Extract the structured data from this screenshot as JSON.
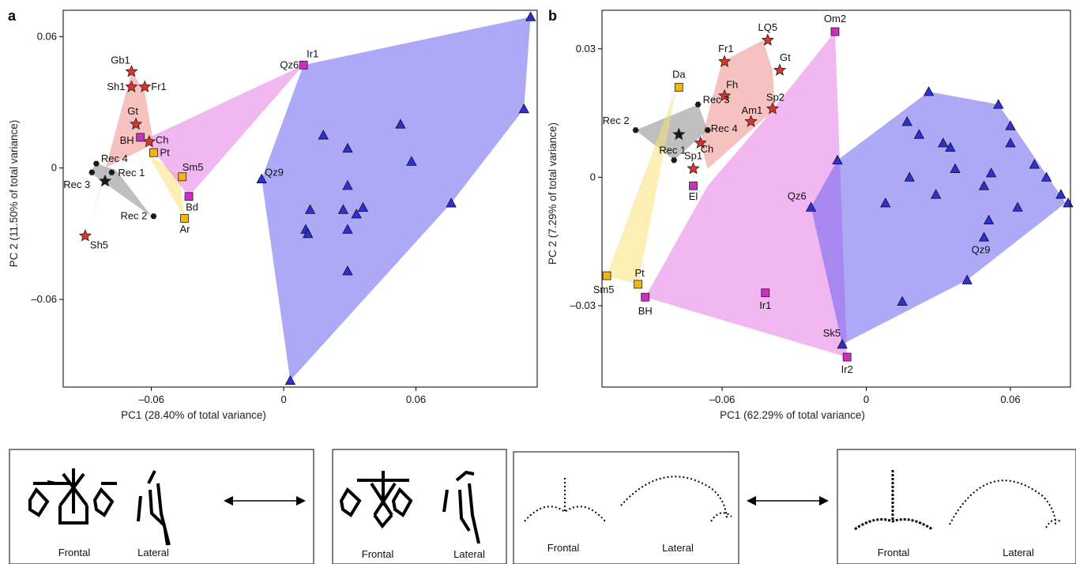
{
  "colors": {
    "paleo_fill": "#ec8f8a",
    "paleo_marker": "#e0322b",
    "recent_fill": "#8a8a8a",
    "recent_marker": "#1a1a1a",
    "yellow_fill": "#f7e27a",
    "yellow_marker": "#f2b60c",
    "magenta_fill": "#e57be6",
    "magenta_marker": "#cc2fbf",
    "blue_fill": "#6a62f0",
    "blue_marker": "#2f2fd8"
  },
  "chart_data": [
    {
      "panel": "a",
      "type": "scatter",
      "xlabel": "PC1 (28.40% of total variance)",
      "ylabel": "PC 2 (11.50% of total variance)",
      "xlim": [
        -0.1,
        0.115
      ],
      "ylim": [
        -0.1,
        0.072
      ],
      "xticks": [
        -0.06,
        0,
        0.06
      ],
      "xtick_labels": [
        "–0.06",
        "0",
        "0.06"
      ],
      "yticks": [
        -0.06,
        0,
        0.06
      ],
      "ytick_labels": [
        "–0.06",
        "0",
        "0.06"
      ],
      "hulls": [
        {
          "group": "red",
          "color": "#ec8f8a",
          "points": [
            [
              -0.069,
              0.044
            ],
            [
              -0.063,
              0.035
            ],
            [
              -0.059,
              0.011
            ],
            [
              -0.081,
              0.0
            ],
            [
              -0.089,
              -0.031
            ]
          ]
        },
        {
          "group": "grey",
          "color": "#8a8a8a",
          "points": [
            [
              -0.085,
              0.002
            ],
            [
              -0.076,
              -0.001
            ],
            [
              -0.06,
              -0.022
            ],
            [
              -0.088,
              -0.002
            ]
          ]
        },
        {
          "group": "yellow",
          "color": "#f7e27a",
          "points": [
            [
              -0.062,
              0.007
            ],
            [
              -0.047,
              -0.004
            ],
            [
              -0.045,
              -0.023
            ]
          ]
        },
        {
          "group": "magenta",
          "color": "#e57be6",
          "points": [
            [
              0.009,
              0.047
            ],
            [
              -0.063,
              0.013
            ],
            [
              -0.043,
              -0.013
            ]
          ]
        },
        {
          "group": "blue",
          "color": "#6a62f0",
          "points": [
            [
              0.112,
              0.069
            ],
            [
              0.109,
              0.027
            ],
            [
              0.076,
              -0.016
            ],
            [
              0.003,
              -0.097
            ],
            [
              -0.01,
              -0.005
            ],
            [
              0.009,
              0.047
            ]
          ]
        }
      ],
      "points": [
        {
          "label": "Gb1",
          "x": -0.069,
          "y": 0.044,
          "marker": "star",
          "color": "#e0322b"
        },
        {
          "label": "Sh1",
          "x": -0.069,
          "y": 0.037,
          "marker": "star",
          "color": "#e0322b"
        },
        {
          "label": "Fr1",
          "x": -0.063,
          "y": 0.037,
          "marker": "star",
          "color": "#e0322b"
        },
        {
          "label": "Gt",
          "x": -0.067,
          "y": 0.02,
          "marker": "star",
          "color": "#e0322b"
        },
        {
          "label": "Ch",
          "x": -0.061,
          "y": 0.012,
          "marker": "star",
          "color": "#e0322b"
        },
        {
          "label": "Sh5",
          "x": -0.09,
          "y": -0.031,
          "marker": "star",
          "color": "#e0322b"
        },
        {
          "label": "BH",
          "x": -0.065,
          "y": 0.014,
          "marker": "square",
          "color": "#cc2fbf"
        },
        {
          "label": "Pt",
          "x": -0.059,
          "y": 0.007,
          "marker": "square",
          "color": "#f2b60c"
        },
        {
          "label": "Sm5",
          "x": -0.046,
          "y": -0.004,
          "marker": "square",
          "color": "#f2b60c"
        },
        {
          "label": "Bd",
          "x": -0.043,
          "y": -0.013,
          "marker": "square",
          "color": "#cc2fbf"
        },
        {
          "label": "Ar",
          "x": -0.045,
          "y": -0.023,
          "marker": "square",
          "color": "#f2b60c"
        },
        {
          "label": "Ir1",
          "x": 0.009,
          "y": 0.047,
          "marker": "square",
          "color": "#cc2fbf"
        },
        {
          "label": "Rec 4",
          "x": -0.085,
          "y": 0.002,
          "marker": "hex",
          "color": "#1a1a1a"
        },
        {
          "label": "Rec 1",
          "x": -0.078,
          "y": -0.002,
          "marker": "hex",
          "color": "#1a1a1a"
        },
        {
          "label": "Rec 3",
          "x": -0.087,
          "y": -0.002,
          "marker": "hex",
          "color": "#1a1a1a"
        },
        {
          "label": "Rec 2",
          "x": -0.059,
          "y": -0.022,
          "marker": "hex",
          "color": "#1a1a1a"
        },
        {
          "label": "",
          "x": -0.081,
          "y": -0.006,
          "marker": "star",
          "color": "#1a1a1a"
        },
        {
          "label": "Qz6",
          "x": 0.009,
          "y": 0.047,
          "marker": "none",
          "color": "#2f2fd8"
        },
        {
          "label": "Qz9",
          "x": -0.01,
          "y": -0.005,
          "marker": "triangle",
          "color": "#2f2fd8"
        },
        {
          "label": "",
          "x": 0.112,
          "y": 0.069,
          "marker": "triangle",
          "color": "#2f2fd8"
        },
        {
          "label": "",
          "x": 0.109,
          "y": 0.027,
          "marker": "triangle",
          "color": "#2f2fd8"
        },
        {
          "label": "",
          "x": 0.053,
          "y": 0.02,
          "marker": "triangle",
          "color": "#2f2fd8"
        },
        {
          "label": "",
          "x": 0.018,
          "y": 0.015,
          "marker": "triangle",
          "color": "#2f2fd8"
        },
        {
          "label": "",
          "x": 0.029,
          "y": 0.009,
          "marker": "triangle",
          "color": "#2f2fd8"
        },
        {
          "label": "",
          "x": 0.058,
          "y": 0.003,
          "marker": "triangle",
          "color": "#2f2fd8"
        },
        {
          "label": "",
          "x": 0.029,
          "y": -0.008,
          "marker": "triangle",
          "color": "#2f2fd8"
        },
        {
          "label": "",
          "x": 0.012,
          "y": -0.019,
          "marker": "triangle",
          "color": "#2f2fd8"
        },
        {
          "label": "",
          "x": 0.027,
          "y": -0.019,
          "marker": "triangle",
          "color": "#2f2fd8"
        },
        {
          "label": "",
          "x": 0.033,
          "y": -0.021,
          "marker": "triangle",
          "color": "#2f2fd8"
        },
        {
          "label": "",
          "x": 0.036,
          "y": -0.018,
          "marker": "triangle",
          "color": "#2f2fd8"
        },
        {
          "label": "",
          "x": 0.01,
          "y": -0.028,
          "marker": "triangle",
          "color": "#2f2fd8"
        },
        {
          "label": "",
          "x": 0.011,
          "y": -0.03,
          "marker": "triangle",
          "color": "#2f2fd8"
        },
        {
          "label": "",
          "x": 0.029,
          "y": -0.028,
          "marker": "triangle",
          "color": "#2f2fd8"
        },
        {
          "label": "",
          "x": 0.029,
          "y": -0.047,
          "marker": "triangle",
          "color": "#2f2fd8"
        },
        {
          "label": "",
          "x": 0.076,
          "y": -0.016,
          "marker": "triangle",
          "color": "#2f2fd8"
        },
        {
          "label": "",
          "x": 0.003,
          "y": -0.097,
          "marker": "triangle",
          "color": "#2f2fd8"
        }
      ]
    },
    {
      "panel": "b",
      "type": "scatter",
      "xlabel": "PC1 (62.29% of total variance)",
      "ylabel": "PC 2 (7.29% of total variance)",
      "xlim": [
        -0.11,
        0.085
      ],
      "ylim": [
        -0.049,
        0.039
      ],
      "xticks": [
        -0.06,
        0,
        0.06
      ],
      "xtick_labels": [
        "–0.06",
        "0",
        "0.06"
      ],
      "yticks": [
        -0.03,
        0,
        0.03
      ],
      "ytick_labels": [
        "–0.03",
        "0",
        "0.03"
      ],
      "hulls": [
        {
          "group": "red",
          "color": "#ec8f8a",
          "points": [
            [
              -0.06,
              0.027
            ],
            [
              -0.043,
              0.032
            ],
            [
              -0.039,
              0.025
            ],
            [
              -0.038,
              0.016
            ],
            [
              -0.066,
              0.002
            ],
            [
              -0.069,
              0.008
            ]
          ]
        },
        {
          "group": "grey",
          "color": "#8a8a8a",
          "points": [
            [
              -0.07,
              0.017
            ],
            [
              -0.066,
              0.011
            ],
            [
              -0.08,
              0.004
            ],
            [
              -0.096,
              0.011
            ]
          ]
        },
        {
          "group": "yellow",
          "color": "#f7e27a",
          "points": [
            [
              -0.079,
              0.021
            ],
            [
              -0.095,
              -0.025
            ],
            [
              -0.108,
              -0.023
            ]
          ]
        },
        {
          "group": "magenta",
          "color": "#e57be6",
          "points": [
            [
              -0.013,
              0.034
            ],
            [
              -0.008,
              -0.042
            ],
            [
              -0.092,
              -0.028
            ],
            [
              -0.066,
              -0.002
            ],
            [
              -0.043,
              0.013
            ]
          ]
        },
        {
          "group": "blue",
          "color": "#6a62f0",
          "points": [
            [
              0.026,
              0.02
            ],
            [
              0.055,
              0.017
            ],
            [
              0.083,
              -0.006
            ],
            [
              0.042,
              -0.024
            ],
            [
              -0.01,
              -0.039
            ],
            [
              -0.023,
              -0.007
            ],
            [
              -0.012,
              0.004
            ]
          ]
        }
      ],
      "points": [
        {
          "label": "LQ5",
          "x": -0.041,
          "y": 0.032,
          "marker": "star",
          "color": "#e0322b"
        },
        {
          "label": "Fr1",
          "x": -0.059,
          "y": 0.027,
          "marker": "star",
          "color": "#e0322b"
        },
        {
          "label": "Gt",
          "x": -0.036,
          "y": 0.025,
          "marker": "star",
          "color": "#e0322b"
        },
        {
          "label": "Fh",
          "x": -0.059,
          "y": 0.019,
          "marker": "star",
          "color": "#e0322b"
        },
        {
          "label": "Sp2",
          "x": -0.039,
          "y": 0.016,
          "marker": "star",
          "color": "#e0322b"
        },
        {
          "label": "Am1",
          "x": -0.048,
          "y": 0.013,
          "marker": "star",
          "color": "#e0322b"
        },
        {
          "label": "Ch",
          "x": -0.069,
          "y": 0.008,
          "marker": "star",
          "color": "#e0322b"
        },
        {
          "label": "Sp1",
          "x": -0.072,
          "y": 0.002,
          "marker": "star",
          "color": "#e0322b"
        },
        {
          "label": "Om2",
          "x": -0.013,
          "y": 0.034,
          "marker": "square",
          "color": "#cc2fbf"
        },
        {
          "label": "Da",
          "x": -0.078,
          "y": 0.021,
          "marker": "square",
          "color": "#f2b60c"
        },
        {
          "label": "El",
          "x": -0.072,
          "y": -0.002,
          "marker": "square",
          "color": "#cc2fbf"
        },
        {
          "label": "Sm5",
          "x": -0.108,
          "y": -0.023,
          "marker": "square",
          "color": "#f2b60c"
        },
        {
          "label": "Pt",
          "x": -0.095,
          "y": -0.025,
          "marker": "square",
          "color": "#f2b60c"
        },
        {
          "label": "BH",
          "x": -0.092,
          "y": -0.028,
          "marker": "square",
          "color": "#cc2fbf"
        },
        {
          "label": "Ir1",
          "x": -0.042,
          "y": -0.027,
          "marker": "square",
          "color": "#cc2fbf"
        },
        {
          "label": "Ir2",
          "x": -0.008,
          "y": -0.042,
          "marker": "square",
          "color": "#cc2fbf"
        },
        {
          "label": "Rec 3",
          "x": -0.07,
          "y": 0.017,
          "marker": "hex",
          "color": "#1a1a1a"
        },
        {
          "label": "Rec 2",
          "x": -0.096,
          "y": 0.011,
          "marker": "hex",
          "color": "#1a1a1a"
        },
        {
          "label": "Rec 4",
          "x": -0.066,
          "y": 0.011,
          "marker": "hex",
          "color": "#1a1a1a"
        },
        {
          "label": "Rec 1",
          "x": -0.08,
          "y": 0.004,
          "marker": "hex",
          "color": "#1a1a1a"
        },
        {
          "label": "",
          "x": -0.078,
          "y": 0.01,
          "marker": "star",
          "color": "#1a1a1a"
        },
        {
          "label": "Qz6",
          "x": -0.023,
          "y": -0.007,
          "marker": "triangle",
          "color": "#2f2fd8"
        },
        {
          "label": "Qz9",
          "x": 0.049,
          "y": -0.014,
          "marker": "triangle",
          "color": "#2f2fd8"
        },
        {
          "label": "Sk5",
          "x": -0.01,
          "y": -0.039,
          "marker": "triangle",
          "color": "#2f2fd8"
        },
        {
          "label": "",
          "x": -0.012,
          "y": 0.004,
          "marker": "triangle",
          "color": "#2f2fd8"
        },
        {
          "label": "",
          "x": 0.026,
          "y": 0.02,
          "marker": "triangle",
          "color": "#2f2fd8"
        },
        {
          "label": "",
          "x": 0.055,
          "y": 0.017,
          "marker": "triangle",
          "color": "#2f2fd8"
        },
        {
          "label": "",
          "x": 0.017,
          "y": 0.013,
          "marker": "triangle",
          "color": "#2f2fd8"
        },
        {
          "label": "",
          "x": 0.06,
          "y": 0.012,
          "marker": "triangle",
          "color": "#2f2fd8"
        },
        {
          "label": "",
          "x": 0.022,
          "y": 0.01,
          "marker": "triangle",
          "color": "#2f2fd8"
        },
        {
          "label": "",
          "x": 0.032,
          "y": 0.008,
          "marker": "triangle",
          "color": "#2f2fd8"
        },
        {
          "label": "",
          "x": 0.035,
          "y": 0.007,
          "marker": "triangle",
          "color": "#2f2fd8"
        },
        {
          "label": "",
          "x": 0.06,
          "y": 0.008,
          "marker": "triangle",
          "color": "#2f2fd8"
        },
        {
          "label": "",
          "x": 0.07,
          "y": 0.003,
          "marker": "triangle",
          "color": "#2f2fd8"
        },
        {
          "label": "",
          "x": 0.037,
          "y": 0.002,
          "marker": "triangle",
          "color": "#2f2fd8"
        },
        {
          "label": "",
          "x": 0.018,
          "y": 0.0,
          "marker": "triangle",
          "color": "#2f2fd8"
        },
        {
          "label": "",
          "x": 0.052,
          "y": 0.001,
          "marker": "triangle",
          "color": "#2f2fd8"
        },
        {
          "label": "",
          "x": 0.075,
          "y": 0.0,
          "marker": "triangle",
          "color": "#2f2fd8"
        },
        {
          "label": "",
          "x": 0.029,
          "y": -0.004,
          "marker": "triangle",
          "color": "#2f2fd8"
        },
        {
          "label": "",
          "x": 0.049,
          "y": -0.002,
          "marker": "triangle",
          "color": "#2f2fd8"
        },
        {
          "label": "",
          "x": 0.008,
          "y": -0.006,
          "marker": "triangle",
          "color": "#2f2fd8"
        },
        {
          "label": "",
          "x": 0.081,
          "y": -0.004,
          "marker": "triangle",
          "color": "#2f2fd8"
        },
        {
          "label": "",
          "x": 0.084,
          "y": -0.006,
          "marker": "triangle",
          "color": "#2f2fd8"
        },
        {
          "label": "",
          "x": 0.051,
          "y": -0.01,
          "marker": "triangle",
          "color": "#2f2fd8"
        },
        {
          "label": "",
          "x": 0.063,
          "y": -0.007,
          "marker": "triangle",
          "color": "#2f2fd8"
        },
        {
          "label": "",
          "x": 0.042,
          "y": -0.024,
          "marker": "triangle",
          "color": "#2f2fd8"
        },
        {
          "label": "",
          "x": 0.015,
          "y": -0.029,
          "marker": "triangle",
          "color": "#2f2fd8"
        }
      ]
    }
  ],
  "shape_panels": {
    "frontal_label": "Frontal",
    "lateral_label": "Lateral"
  }
}
